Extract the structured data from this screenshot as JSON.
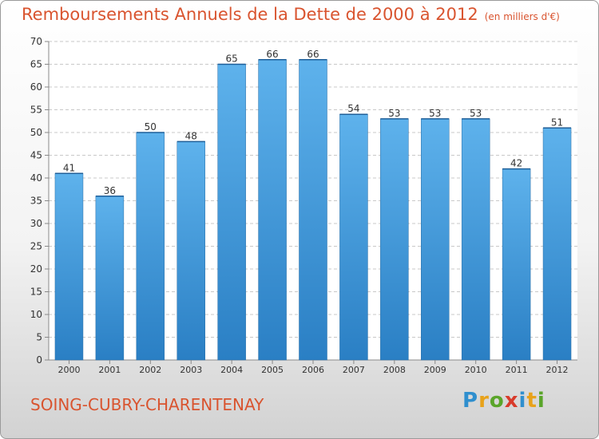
{
  "title": "Remboursements Annuels de la Dette de 2000 à 2012",
  "unit": "(en milliers d'€)",
  "city": "SOING-CUBRY-CHARENTENAY",
  "logo": {
    "letters": [
      "P",
      "r",
      "o",
      "x",
      "i",
      "t",
      "i"
    ],
    "colors": [
      "#2f8fce",
      "#e8a21a",
      "#5aa52a",
      "#d83b2b",
      "#2f8fce",
      "#e8a21a",
      "#5aa52a"
    ]
  },
  "colors": {
    "bar_light": "#5eb2ec",
    "bar_dark": "#2a7fc4",
    "text": "#d9542f"
  },
  "chart_data": {
    "type": "bar",
    "categories": [
      "2000",
      "2001",
      "2002",
      "2003",
      "2004",
      "2005",
      "2006",
      "2007",
      "2008",
      "2009",
      "2010",
      "2011",
      "2012"
    ],
    "values": [
      41,
      36,
      50,
      48,
      65,
      66,
      66,
      54,
      53,
      53,
      53,
      42,
      51
    ],
    "ylim": [
      0,
      70
    ],
    "yticks": [
      0,
      5,
      10,
      15,
      20,
      25,
      30,
      35,
      40,
      45,
      50,
      55,
      60,
      65,
      70
    ],
    "grid": true,
    "data_labels": true
  }
}
